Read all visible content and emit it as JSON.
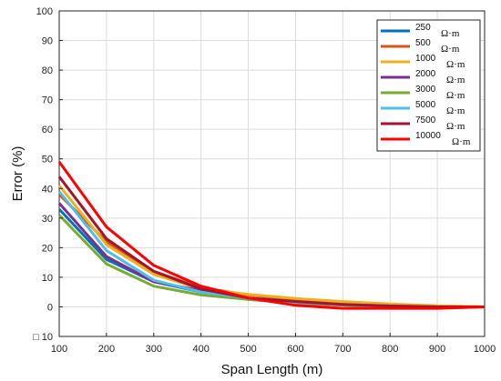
{
  "chart_data": {
    "type": "line",
    "xlabel": "Span Length (m)",
    "ylabel": "Error (%)",
    "xlim": [
      100,
      1000
    ],
    "ylim": [
      -10,
      100
    ],
    "xticks": [
      100,
      200,
      300,
      400,
      500,
      600,
      700,
      800,
      900,
      1000
    ],
    "yticks": [
      0,
      10,
      20,
      30,
      40,
      50,
      60,
      70,
      80,
      90,
      100
    ],
    "ytick_labels": [
      "0",
      "10",
      "20",
      "30",
      "40",
      "50",
      "60",
      "70",
      "80",
      "90",
      "100"
    ],
    "bottom_tick_label": "□ 10",
    "grid": true,
    "legend_position": "top-right",
    "legend_unit": "Ω·m",
    "x": [
      100,
      200,
      300,
      400,
      500,
      600,
      700,
      800,
      900,
      1000
    ],
    "series": [
      {
        "name": "250",
        "color": "#0072BD",
        "values": [
          33,
          16,
          8.5,
          5,
          2.5,
          1.2,
          0.6,
          0.3,
          0,
          0
        ]
      },
      {
        "name": "500",
        "color": "#D95319",
        "values": [
          38,
          22,
          12,
          6.5,
          4,
          2.5,
          1.5,
          0.8,
          0.3,
          0
        ]
      },
      {
        "name": "1000",
        "color": "#EDB120",
        "values": [
          41,
          21,
          11,
          6,
          4.2,
          2.8,
          1.8,
          1,
          0.4,
          0
        ]
      },
      {
        "name": "2000",
        "color": "#7E2F8E",
        "values": [
          35,
          17,
          8.5,
          5.5,
          2.5,
          1.5,
          0.8,
          0.3,
          0,
          0
        ]
      },
      {
        "name": "3000",
        "color": "#77AC30",
        "values": [
          31,
          14.5,
          7,
          4,
          2.5,
          1.2,
          0.6,
          0.3,
          0,
          0
        ]
      },
      {
        "name": "5000",
        "color": "#4DBEEE",
        "values": [
          39,
          19,
          9,
          5,
          3,
          1.5,
          0.8,
          0.3,
          0,
          0
        ]
      },
      {
        "name": "7500",
        "color": "#A2142F",
        "values": [
          44,
          23,
          12,
          6,
          3,
          1.8,
          0.8,
          0.3,
          0,
          0
        ]
      },
      {
        "name": "10000",
        "color": "#FF0000",
        "values": [
          49,
          27,
          14,
          7,
          3,
          0.5,
          -0.5,
          -0.5,
          -0.5,
          0
        ]
      }
    ]
  }
}
